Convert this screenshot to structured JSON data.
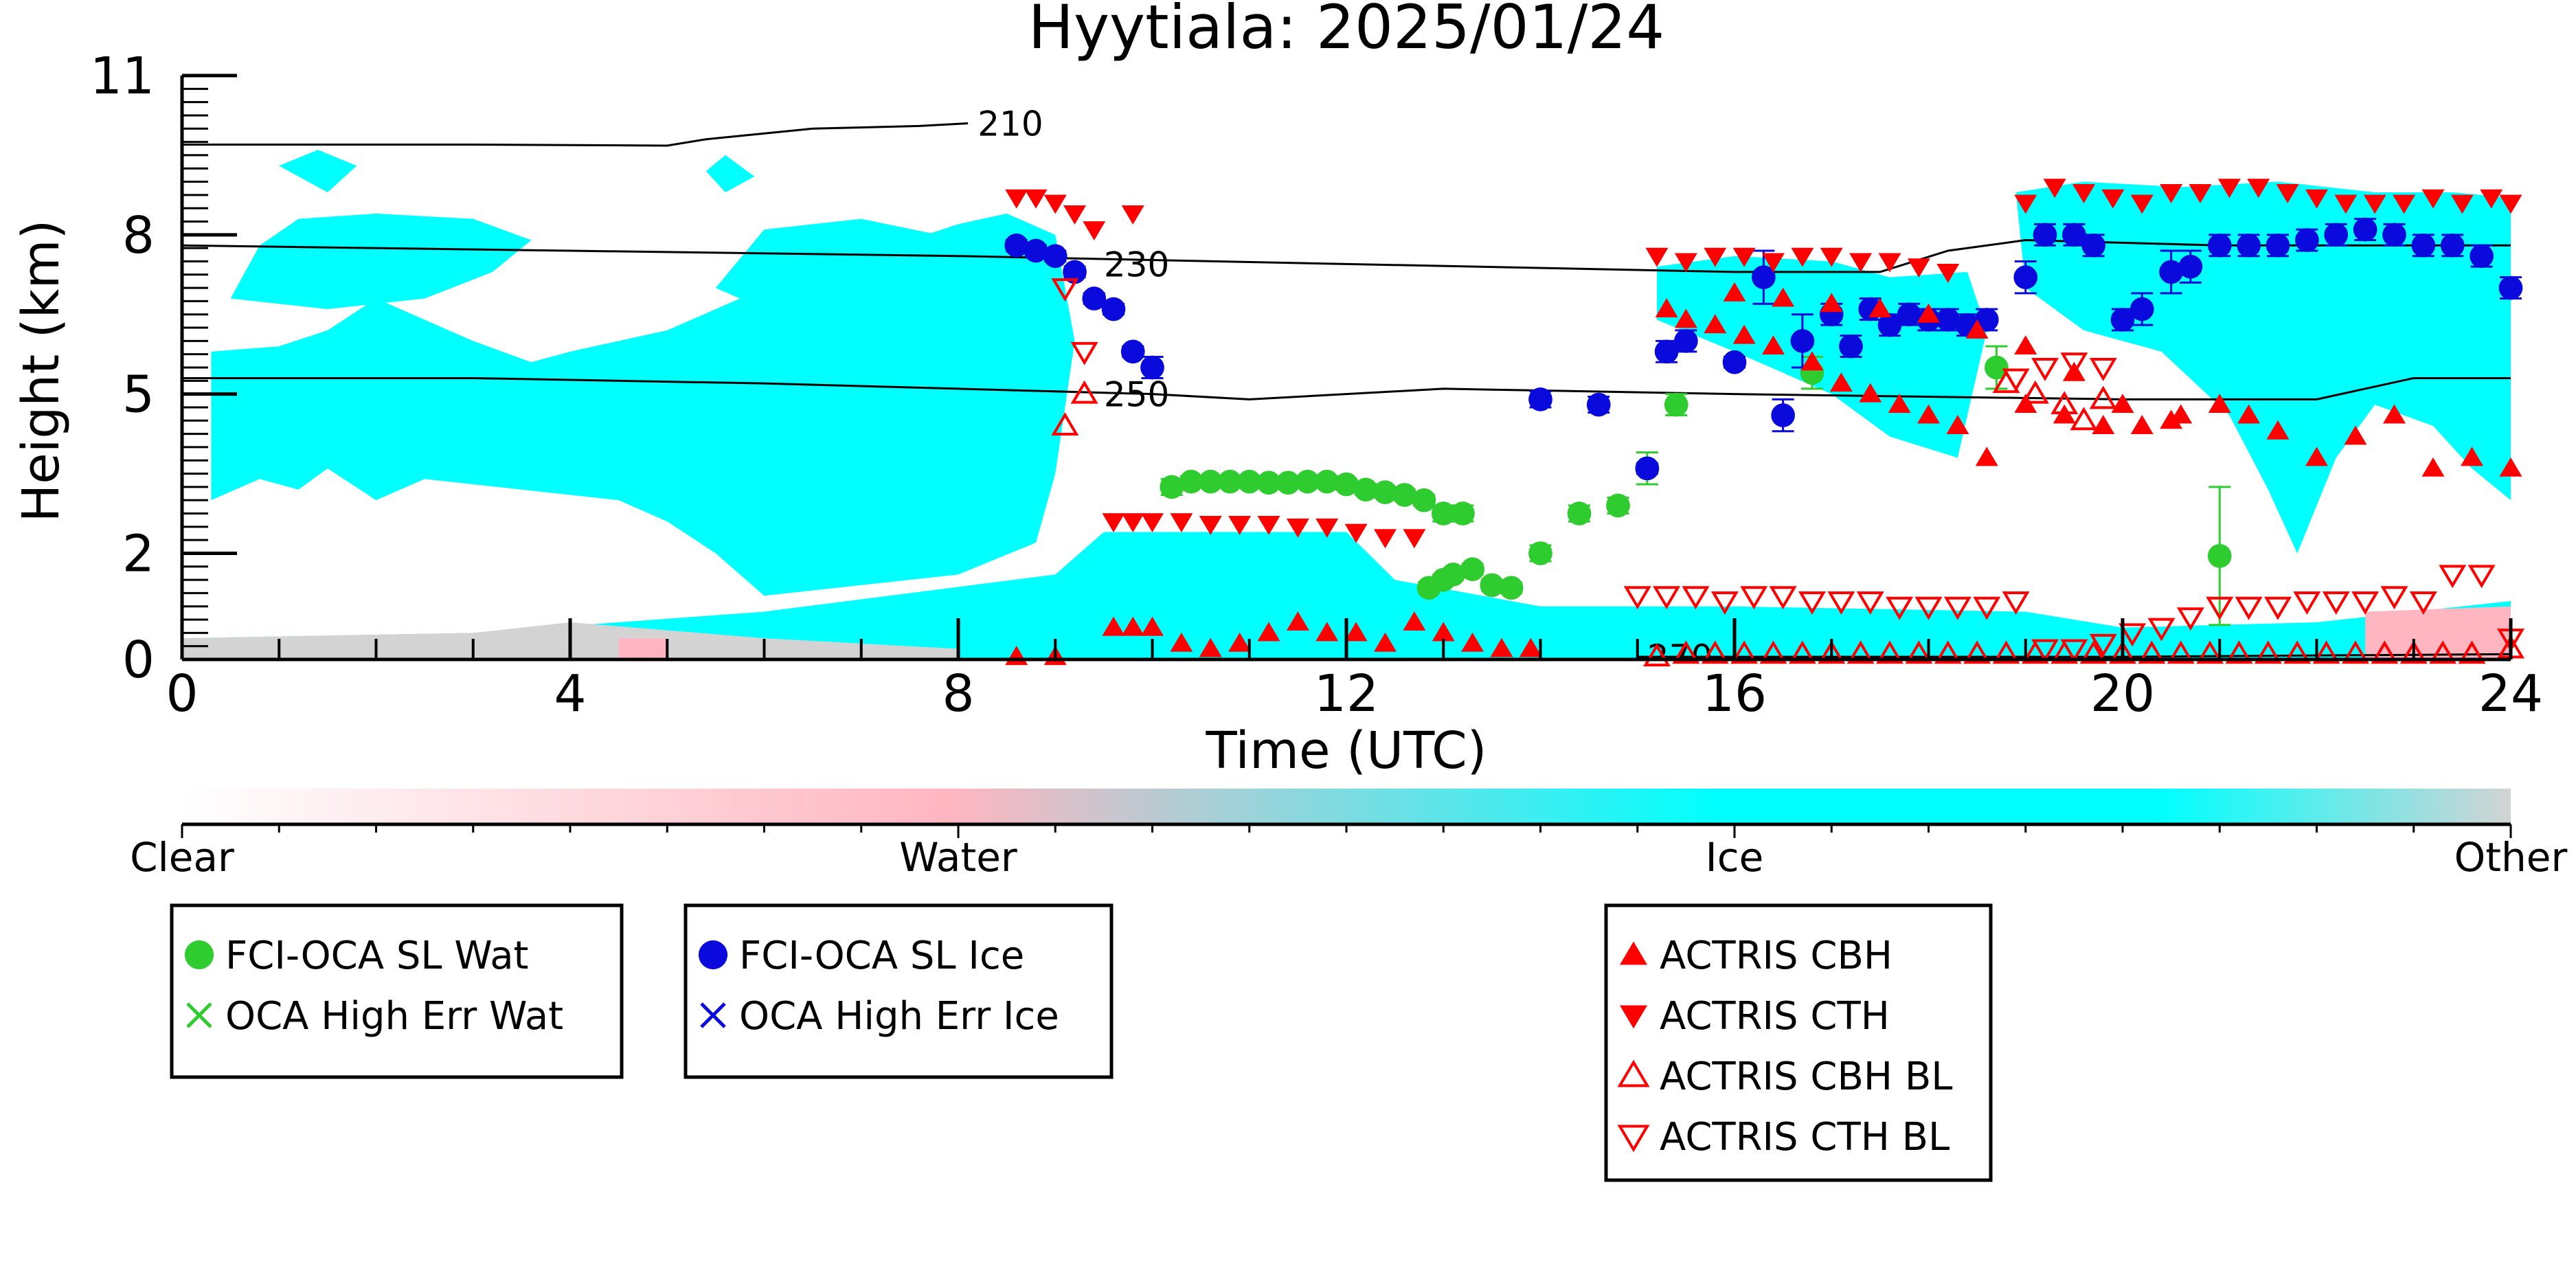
{
  "chart_data": {
    "type": "scatter",
    "title": "Hyytiala: 2025/01/24",
    "xlabel": "Time (UTC)",
    "ylabel": "Height (km)",
    "xlim": [
      0,
      24
    ],
    "ylim": [
      0,
      11
    ],
    "xticks": [
      "0",
      "4",
      "8",
      "12",
      "16",
      "20",
      "24"
    ],
    "yticks": [
      "0",
      "2",
      "5",
      "8",
      "11"
    ],
    "colorbar": {
      "labels": [
        "Clear",
        "Water",
        "Ice",
        "Other"
      ],
      "colors": [
        "#ffffff",
        "#ffb6c1",
        "#00ffff",
        "#d3d3d3"
      ]
    },
    "contours": [
      {
        "label": "210",
        "points": [
          [
            0,
            9.7
          ],
          [
            3,
            9.7
          ],
          [
            5,
            9.68
          ],
          [
            5.4,
            9.8
          ],
          [
            6.5,
            10.0
          ],
          [
            7.6,
            10.05
          ],
          [
            8.1,
            10.1
          ]
        ]
      },
      {
        "label": "230",
        "points": [
          [
            0,
            7.8
          ],
          [
            4,
            7.7
          ],
          [
            8,
            7.6
          ],
          [
            12,
            7.45
          ],
          [
            16,
            7.3
          ],
          [
            17.5,
            7.3
          ],
          [
            18.2,
            7.7
          ],
          [
            19,
            7.9
          ],
          [
            21,
            7.8
          ],
          [
            24,
            7.8
          ]
        ]
      },
      {
        "label": "250",
        "points": [
          [
            0,
            5.3
          ],
          [
            3,
            5.3
          ],
          [
            6,
            5.2
          ],
          [
            8,
            5.1
          ],
          [
            10,
            5.0
          ],
          [
            11,
            4.9
          ],
          [
            13,
            5.1
          ],
          [
            16,
            5.0
          ],
          [
            20,
            4.9
          ],
          [
            22,
            4.9
          ],
          [
            23,
            5.3
          ],
          [
            24,
            5.3
          ]
        ]
      },
      {
        "label": "270",
        "points": [
          [
            15,
            0.05
          ],
          [
            20,
            0.05
          ],
          [
            24,
            0.1
          ]
        ]
      }
    ],
    "series": [
      {
        "name": "FCI-OCA SL Wat",
        "color": "#2ecc2e",
        "marker": "circle-filled",
        "x": [
          10.2,
          10.4,
          10.6,
          10.8,
          11.0,
          11.2,
          11.4,
          11.6,
          11.8,
          12.0,
          12.2,
          12.4,
          12.6,
          12.8,
          13.0,
          13.2,
          13.5,
          13.7,
          14.0,
          14.4,
          14.8,
          15.1,
          15.4,
          16.8,
          18.7,
          21.0,
          12.85,
          13.0,
          13.1,
          13.3
        ],
        "y": [
          3.25,
          3.35,
          3.35,
          3.35,
          3.35,
          3.33,
          3.33,
          3.35,
          3.35,
          3.3,
          3.2,
          3.15,
          3.1,
          3.0,
          2.75,
          2.75,
          1.4,
          1.35,
          2.0,
          2.75,
          2.9,
          3.6,
          4.8,
          5.4,
          5.5,
          1.95,
          1.35,
          1.5,
          1.6,
          1.7
        ],
        "error": [
          0.15,
          0.1,
          0.1,
          0.1,
          0.1,
          0.1,
          0.1,
          0.1,
          0.1,
          0.1,
          0.1,
          0.1,
          0.1,
          0.1,
          0.15,
          0.15,
          0.1,
          0.1,
          0.15,
          0.15,
          0.15,
          0.3,
          0.2,
          0.3,
          0.4,
          1.3,
          0.1,
          0.1,
          0.1,
          0.1
        ]
      },
      {
        "name": "OCA High Err Wat",
        "color": "#2ecc2e",
        "marker": "x",
        "x": [],
        "y": []
      },
      {
        "name": "FCI-OCA SL Ice",
        "color": "#0a0adc",
        "marker": "circle-filled",
        "x": [
          8.6,
          8.8,
          9.0,
          9.2,
          9.4,
          9.6,
          9.8,
          10.0,
          14.0,
          14.6,
          15.1,
          15.3,
          15.5,
          16.0,
          16.3,
          16.5,
          16.7,
          17.0,
          17.2,
          17.4,
          17.6,
          17.8,
          18.0,
          18.2,
          18.4,
          18.6,
          19.0,
          19.2,
          19.5,
          19.7,
          20.0,
          20.2,
          20.5,
          20.7,
          21.0,
          21.3,
          21.6,
          21.9,
          22.2,
          22.5,
          22.8,
          23.1,
          23.4,
          23.7,
          24.0
        ],
        "y": [
          7.8,
          7.7,
          7.6,
          7.3,
          6.8,
          6.6,
          5.8,
          5.5,
          4.9,
          4.8,
          3.6,
          5.8,
          6.0,
          5.6,
          7.2,
          4.6,
          6.0,
          6.5,
          5.9,
          6.6,
          6.3,
          6.5,
          6.4,
          6.4,
          6.3,
          6.4,
          7.2,
          8.0,
          8.0,
          7.8,
          6.4,
          6.6,
          7.3,
          7.4,
          7.8,
          7.8,
          7.8,
          7.9,
          8.0,
          8.1,
          8.0,
          7.8,
          7.8,
          7.6,
          7.0
        ],
        "error": [
          0.1,
          0.1,
          0.1,
          0.1,
          0.1,
          0.1,
          0.1,
          0.2,
          0.15,
          0.15,
          0.1,
          0.2,
          0.2,
          0.1,
          0.5,
          0.3,
          0.5,
          0.2,
          0.2,
          0.2,
          0.2,
          0.2,
          0.2,
          0.2,
          0.2,
          0.2,
          0.3,
          0.2,
          0.2,
          0.2,
          0.2,
          0.3,
          0.4,
          0.3,
          0.2,
          0.2,
          0.2,
          0.2,
          0.2,
          0.2,
          0.2,
          0.2,
          0.2,
          0.2,
          0.2
        ]
      },
      {
        "name": "OCA High Err Ice",
        "color": "#0a0adc",
        "marker": "x",
        "x": [],
        "y": []
      },
      {
        "name": "ACTRIS CBH",
        "color": "#ff0000",
        "marker": "triangle-up-filled",
        "x": [
          8.6,
          9.0,
          9.6,
          9.8,
          10.0,
          10.3,
          10.6,
          10.9,
          11.2,
          11.5,
          11.8,
          12.1,
          12.4,
          12.7,
          13.0,
          13.3,
          13.6,
          13.9,
          15.3,
          15.5,
          15.8,
          16.1,
          16.4,
          16.8,
          17.1,
          17.4,
          17.7,
          18.0,
          18.3,
          18.6,
          19.0,
          19.4,
          19.8,
          20.2,
          20.6,
          21.0,
          21.3,
          21.6,
          22.0,
          22.4,
          22.8,
          23.2,
          23.6,
          24.0,
          16.0,
          16.5,
          17.0,
          17.5,
          18.0,
          18.5,
          19.0,
          19.5,
          20.0,
          20.5
        ],
        "y": [
          0.05,
          0.05,
          0.6,
          0.6,
          0.6,
          0.3,
          0.2,
          0.3,
          0.5,
          0.7,
          0.5,
          0.5,
          0.3,
          0.7,
          0.5,
          0.3,
          0.2,
          0.2,
          6.6,
          6.4,
          6.3,
          6.1,
          5.9,
          5.6,
          5.2,
          5.0,
          4.8,
          4.6,
          4.4,
          3.8,
          4.8,
          4.6,
          4.4,
          4.4,
          4.6,
          4.8,
          4.6,
          4.3,
          3.8,
          4.2,
          4.6,
          3.6,
          3.8,
          3.6,
          6.9,
          6.8,
          6.7,
          6.6,
          6.5,
          6.2,
          5.9,
          5.4,
          4.8,
          4.5
        ]
      },
      {
        "name": "ACTRIS CTH",
        "color": "#ff0000",
        "marker": "triangle-down-filled",
        "x": [
          8.6,
          8.8,
          9.0,
          9.2,
          9.6,
          9.8,
          10.0,
          10.3,
          10.6,
          10.9,
          11.2,
          11.5,
          11.8,
          12.1,
          12.4,
          12.7,
          15.2,
          15.5,
          15.8,
          16.1,
          16.4,
          16.7,
          17.0,
          17.3,
          17.6,
          17.9,
          18.2,
          19.0,
          19.3,
          19.6,
          19.9,
          20.2,
          20.5,
          20.8,
          21.1,
          21.4,
          21.7,
          22.0,
          22.3,
          22.6,
          22.9,
          23.2,
          23.5,
          23.8,
          24.0,
          9.4,
          9.8
        ],
        "y": [
          8.7,
          8.7,
          8.6,
          8.4,
          2.6,
          2.6,
          2.6,
          2.6,
          2.55,
          2.55,
          2.55,
          2.5,
          2.5,
          2.4,
          2.3,
          2.3,
          7.6,
          7.5,
          7.6,
          7.6,
          7.5,
          7.6,
          7.6,
          7.5,
          7.5,
          7.4,
          7.3,
          8.6,
          8.9,
          8.8,
          8.7,
          8.6,
          8.8,
          8.8,
          8.9,
          8.9,
          8.8,
          8.7,
          8.6,
          8.6,
          8.6,
          8.7,
          8.6,
          8.7,
          8.6,
          8.1,
          8.4
        ]
      },
      {
        "name": "ACTRIS CBH BL",
        "color": "#ff0000",
        "marker": "triangle-up-open",
        "x": [
          9.1,
          9.3,
          15.2,
          15.5,
          15.8,
          16.1,
          16.4,
          16.7,
          17.0,
          17.3,
          17.6,
          17.9,
          18.2,
          18.5,
          18.8,
          19.1,
          19.4,
          19.7,
          20.0,
          20.3,
          20.6,
          20.9,
          21.2,
          21.5,
          21.8,
          22.1,
          22.4,
          22.7,
          23.0,
          23.3,
          23.6,
          24.0,
          18.8,
          19.1,
          19.4,
          19.6,
          19.8
        ],
        "y": [
          4.4,
          5.0,
          0.05,
          0.1,
          0.1,
          0.1,
          0.1,
          0.1,
          0.1,
          0.1,
          0.1,
          0.1,
          0.1,
          0.1,
          0.1,
          0.1,
          0.1,
          0.1,
          0.1,
          0.1,
          0.1,
          0.1,
          0.1,
          0.1,
          0.1,
          0.1,
          0.1,
          0.1,
          0.1,
          0.1,
          0.1,
          0.2,
          5.2,
          5.0,
          4.8,
          4.5,
          4.9
        ]
      },
      {
        "name": "ACTRIS CTH BL",
        "color": "#ff0000",
        "marker": "triangle-down-open",
        "x": [
          9.1,
          9.3,
          15.0,
          15.3,
          15.6,
          15.9,
          16.2,
          16.5,
          16.8,
          17.1,
          17.4,
          17.7,
          18.0,
          18.3,
          18.6,
          18.9,
          19.2,
          19.5,
          19.8,
          20.1,
          20.4,
          20.7,
          21.0,
          21.3,
          21.6,
          21.9,
          22.2,
          22.5,
          22.8,
          23.1,
          23.4,
          23.7,
          24.0,
          18.9,
          19.2,
          19.5,
          19.8
        ],
        "y": [
          7.0,
          5.8,
          1.2,
          1.2,
          1.2,
          1.1,
          1.2,
          1.2,
          1.1,
          1.1,
          1.1,
          1.0,
          1.0,
          1.0,
          1.0,
          1.1,
          0.2,
          0.2,
          0.3,
          0.5,
          0.6,
          0.8,
          1.0,
          1.0,
          1.0,
          1.1,
          1.1,
          1.1,
          1.2,
          1.1,
          1.6,
          1.6,
          0.4,
          5.3,
          5.5,
          5.6,
          5.5
        ]
      }
    ],
    "legend": [
      {
        "boxes": [
          {
            "label": "FCI-OCA SL Wat",
            "series": 0
          },
          {
            "label": "OCA High Err Wat",
            "series": 1
          }
        ]
      },
      {
        "boxes": [
          {
            "label": "FCI-OCA SL Ice",
            "series": 2
          },
          {
            "label": "OCA High Err Ice",
            "series": 3
          }
        ]
      },
      {
        "boxes": [
          {
            "label": "ACTRIS CBH",
            "series": 4
          },
          {
            "label": "ACTRIS CTH",
            "series": 5
          },
          {
            "label": "ACTRIS CBH BL",
            "series": 6
          },
          {
            "label": "ACTRIS CTH BL",
            "series": 7
          }
        ]
      }
    ],
    "legend_placement": "below",
    "grid": false
  }
}
